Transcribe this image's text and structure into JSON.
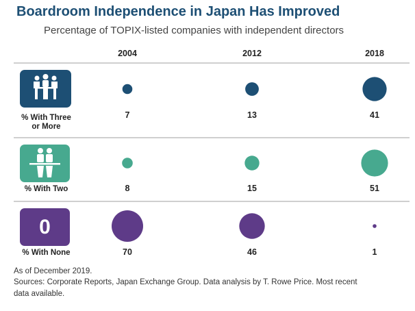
{
  "title": "Boardroom Independence in Japan Has Improved",
  "subtitle": "Percentage of TOPIX-listed companies with independent directors",
  "chart_data": {
    "type": "bubble-table",
    "categories": [
      "2004",
      "2012",
      "2018"
    ],
    "series": [
      {
        "name": "% With Three or More",
        "label_lines": [
          "% With Three",
          "or More"
        ],
        "icon": "three-directors-at-table-icon",
        "color": "#1d4f74",
        "values": [
          7,
          13,
          41
        ]
      },
      {
        "name": "% With Two",
        "label_lines": [
          "% With Two"
        ],
        "icon": "two-directors-at-table-icon",
        "color": "#47a98f",
        "values": [
          8,
          15,
          51
        ]
      },
      {
        "name": "% With None",
        "label_lines": [
          "% With None"
        ],
        "icon": "zero-box-icon",
        "icon_text": "0",
        "color": "#5e3b88",
        "values": [
          70,
          46,
          1
        ]
      }
    ]
  },
  "footer": {
    "as_of": "As of December 2019.",
    "sources_line1": "Sources: Corporate Reports, Japan Exchange Group. Data analysis by T. Rowe Price. Most recent",
    "sources_line2": "data available."
  }
}
